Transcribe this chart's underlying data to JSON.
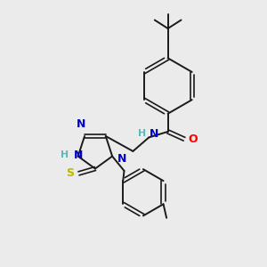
{
  "bg_color": "#ebebeb",
  "bond_color": "#1a1a1a",
  "N_color": "#0000cd",
  "O_color": "#ff0000",
  "S_color": "#b8b800",
  "H_color": "#5cb8b8",
  "figsize": [
    3.0,
    3.0
  ],
  "dpi": 100,
  "xlim": [
    0,
    10
  ],
  "ylim": [
    0,
    10
  ]
}
